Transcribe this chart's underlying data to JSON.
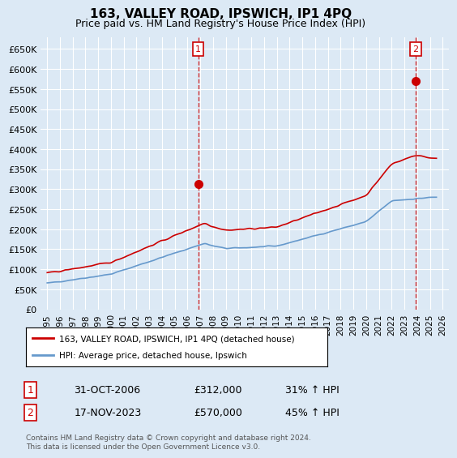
{
  "title": "163, VALLEY ROAD, IPSWICH, IP1 4PQ",
  "subtitle": "Price paid vs. HM Land Registry's House Price Index (HPI)",
  "bg_color": "#dce9f5",
  "plot_bg_color": "#dce9f5",
  "grid_color": "#ffffff",
  "red_color": "#cc0000",
  "blue_color": "#6699cc",
  "ylim": [
    0,
    680000
  ],
  "yticks": [
    0,
    50000,
    100000,
    150000,
    200000,
    250000,
    300000,
    350000,
    400000,
    450000,
    500000,
    550000,
    600000,
    650000
  ],
  "legend_label_red": "163, VALLEY ROAD, IPSWICH, IP1 4PQ (detached house)",
  "legend_label_blue": "HPI: Average price, detached house, Ipswich",
  "annotation1_label": "1",
  "annotation1_date": "31-OCT-2006",
  "annotation1_price": "£312,000",
  "annotation1_hpi": "31% ↑ HPI",
  "annotation2_label": "2",
  "annotation2_date": "17-NOV-2023",
  "annotation2_price": "£570,000",
  "annotation2_hpi": "45% ↑ HPI",
  "footer": "Contains HM Land Registry data © Crown copyright and database right 2024.\nThis data is licensed under the Open Government Licence v3.0.",
  "sale1_year": 2006.83,
  "sale1_price": 312000,
  "sale2_year": 2023.88,
  "sale2_price": 570000
}
